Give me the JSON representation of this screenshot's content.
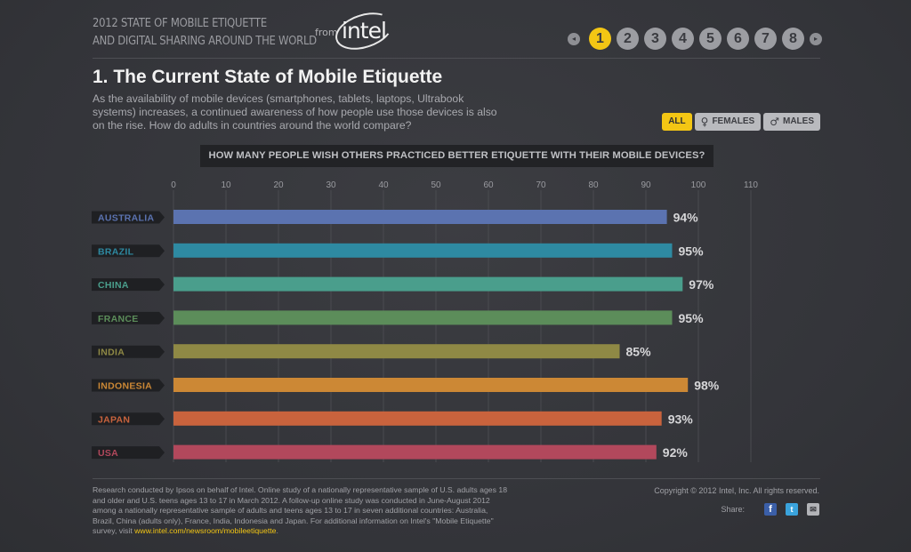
{
  "header": {
    "title_line1": "2012 STATE OF MOBILE ETIQUETTE",
    "title_line2": "AND DIGITAL SHARING AROUND THE WORLD",
    "from_label": "from",
    "logo_text": "intel"
  },
  "pager": {
    "prev_symbol": "◂",
    "next_symbol": "▸",
    "pages": [
      "1",
      "2",
      "3",
      "4",
      "5",
      "6",
      "7",
      "8"
    ],
    "active_index": 0
  },
  "main": {
    "title": "1. The Current State of Mobile Etiquette",
    "intro": "As the availability of mobile devices (smartphones, tablets, laptops, Ultrabook systems) increases, a continued awareness of how people use those devices is also on the rise. How do adults in countries around the world compare?",
    "filters": [
      {
        "label": "ALL",
        "symbol": "",
        "active": true
      },
      {
        "label": "FEMALES",
        "symbol": "♀",
        "active": false
      },
      {
        "label": "MALES",
        "symbol": "♂",
        "active": false
      }
    ],
    "question": "HOW MANY PEOPLE WISH OTHERS PRACTICED BETTER ETIQUETTE WITH THEIR MOBILE DEVICES?"
  },
  "chart_data": {
    "type": "bar",
    "orientation": "horizontal",
    "title": "HOW MANY PEOPLE WISH OTHERS PRACTICED BETTER ETIQUETTE WITH THEIR MOBILE DEVICES?",
    "xlim": [
      0,
      110
    ],
    "ticks": [
      0,
      10,
      20,
      30,
      40,
      50,
      60,
      70,
      80,
      90,
      100,
      110
    ],
    "grid": true,
    "categories": [
      "AUSTRALIA",
      "BRAZIL",
      "CHINA",
      "FRANCE",
      "INDIA",
      "INDONESIA",
      "JAPAN",
      "USA"
    ],
    "values": [
      94,
      95,
      97,
      95,
      85,
      98,
      93,
      92
    ],
    "value_labels": [
      "94%",
      "95%",
      "97%",
      "95%",
      "85%",
      "98%",
      "93%",
      "92%"
    ],
    "colors": [
      "#5b73b0",
      "#2e8aa2",
      "#4a9e8c",
      "#5c8d5a",
      "#8f8945",
      "#cc8835",
      "#c9633d",
      "#b2485c"
    ]
  },
  "footer": {
    "note": "Research conducted by Ipsos on behalf of Intel. Online study of a nationally representative sample of U.S. adults ages 18 and older and U.S. teens ages 13 to 17 in March 2012. A follow-up online study was conducted in June-August 2012 among a nationally representative sample of adults and teens ages 13 to 17 in seven additional countries: Australia, Brazil, China (adults only), France, India, Indonesia and Japan. For additional information on Intel's \"Mobile Etiquette\" survey, visit ",
    "link": "www.intel.com/newsroom/mobileetiquette",
    "note_end": ".",
    "copyright": "Copyright © 2012 Intel, Inc. All rights reserved.",
    "share_label": "Share:",
    "share_icons": {
      "facebook": "f",
      "twitter": "t",
      "email": "✉"
    }
  }
}
